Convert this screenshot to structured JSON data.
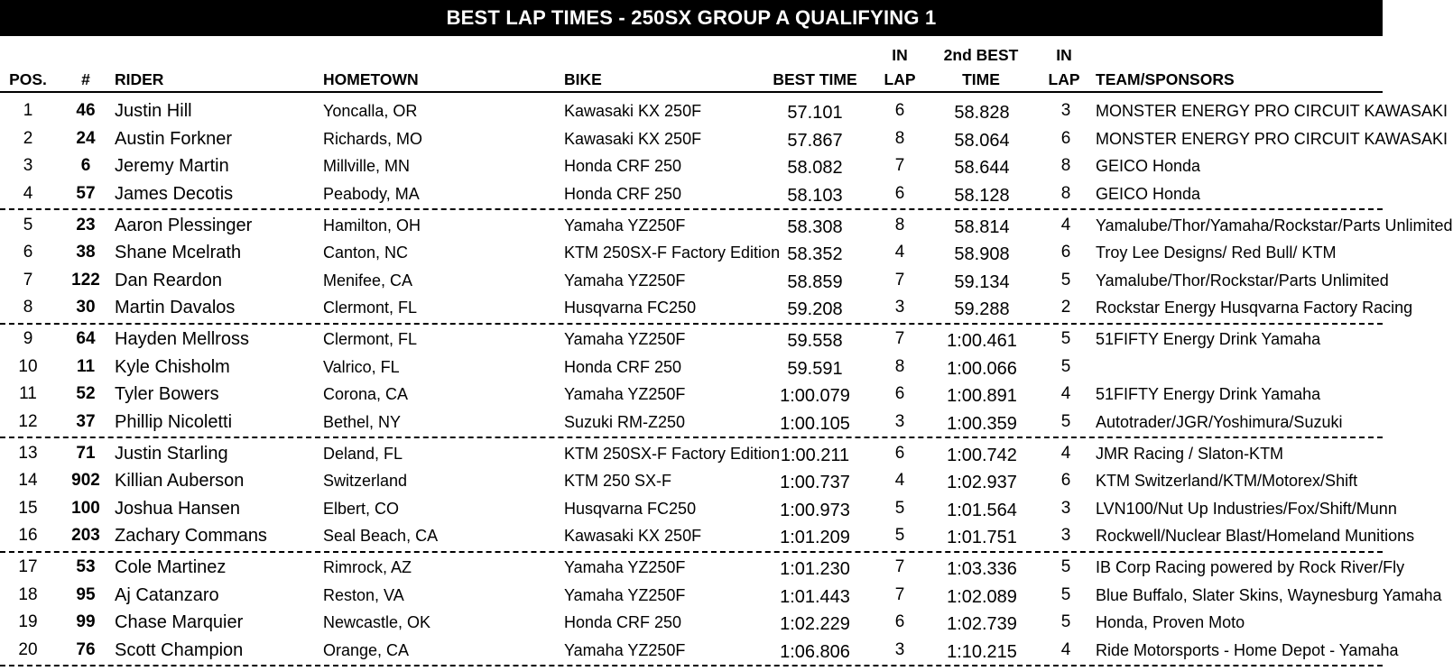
{
  "title": "BEST LAP TIMES - 250SX GROUP A QUALIFYING 1",
  "headers": {
    "pos": "POS.",
    "num": "#",
    "rider": "RIDER",
    "hometown": "HOMETOWN",
    "bike": "BIKE",
    "best_time": "BEST TIME",
    "in_lap_1_top": "IN",
    "in_lap_1_bottom": "LAP",
    "second_best_top": "2nd BEST",
    "second_best_bottom": "TIME",
    "in_lap_2_top": "IN",
    "in_lap_2_bottom": "LAP",
    "team": "TEAM/SPONSORS"
  },
  "rows": [
    {
      "pos": "1",
      "num": "46",
      "rider": "Justin Hill",
      "hometown": "Yoncalla, OR",
      "bike": "Kawasaki KX 250F",
      "best": "57.101",
      "lap1": "6",
      "best2": "58.828",
      "lap2": "3",
      "team": "MONSTER ENERGY PRO CIRCUIT KAWASAKI"
    },
    {
      "pos": "2",
      "num": "24",
      "rider": "Austin Forkner",
      "hometown": "Richards, MO",
      "bike": "Kawasaki KX 250F",
      "best": "57.867",
      "lap1": "8",
      "best2": "58.064",
      "lap2": "6",
      "team": "MONSTER ENERGY PRO CIRCUIT KAWASAKI"
    },
    {
      "pos": "3",
      "num": "6",
      "rider": "Jeremy Martin",
      "hometown": "Millville, MN",
      "bike": "Honda CRF 250",
      "best": "58.082",
      "lap1": "7",
      "best2": "58.644",
      "lap2": "8",
      "team": "GEICO Honda"
    },
    {
      "pos": "4",
      "num": "57",
      "rider": "James Decotis",
      "hometown": "Peabody, MA",
      "bike": "Honda CRF 250",
      "best": "58.103",
      "lap1": "6",
      "best2": "58.128",
      "lap2": "8",
      "team": "GEICO Honda"
    },
    {
      "pos": "5",
      "num": "23",
      "rider": "Aaron Plessinger",
      "hometown": "Hamilton, OH",
      "bike": "Yamaha YZ250F",
      "best": "58.308",
      "lap1": "8",
      "best2": "58.814",
      "lap2": "4",
      "team": "Yamalube/Thor/Yamaha/Rockstar/Parts Unlimited"
    },
    {
      "pos": "6",
      "num": "38",
      "rider": "Shane Mcelrath",
      "hometown": "Canton, NC",
      "bike": "KTM 250SX-F Factory Edition",
      "best": "58.352",
      "lap1": "4",
      "best2": "58.908",
      "lap2": "6",
      "team": "Troy Lee Designs/ Red Bull/ KTM"
    },
    {
      "pos": "7",
      "num": "122",
      "rider": "Dan Reardon",
      "hometown": "Menifee, CA",
      "bike": "Yamaha YZ250F",
      "best": "58.859",
      "lap1": "7",
      "best2": "59.134",
      "lap2": "5",
      "team": "Yamalube/Thor/Rockstar/Parts Unlimited"
    },
    {
      "pos": "8",
      "num": "30",
      "rider": "Martin Davalos",
      "hometown": "Clermont, FL",
      "bike": "Husqvarna FC250",
      "best": "59.208",
      "lap1": "3",
      "best2": "59.288",
      "lap2": "2",
      "team": "Rockstar Energy Husqvarna Factory Racing"
    },
    {
      "pos": "9",
      "num": "64",
      "rider": "Hayden Mellross",
      "hometown": "Clermont, FL",
      "bike": "Yamaha YZ250F",
      "best": "59.558",
      "lap1": "7",
      "best2": "1:00.461",
      "lap2": "5",
      "team": "51FIFTY Energy Drink Yamaha"
    },
    {
      "pos": "10",
      "num": "11",
      "rider": "Kyle Chisholm",
      "hometown": "Valrico, FL",
      "bike": "Honda CRF 250",
      "best": "59.591",
      "lap1": "8",
      "best2": "1:00.066",
      "lap2": "5",
      "team": ""
    },
    {
      "pos": "11",
      "num": "52",
      "rider": "Tyler Bowers",
      "hometown": "Corona, CA",
      "bike": "Yamaha YZ250F",
      "best": "1:00.079",
      "lap1": "6",
      "best2": "1:00.891",
      "lap2": "4",
      "team": "51FIFTY Energy Drink Yamaha"
    },
    {
      "pos": "12",
      "num": "37",
      "rider": "Phillip Nicoletti",
      "hometown": "Bethel, NY",
      "bike": "Suzuki RM-Z250",
      "best": "1:00.105",
      "lap1": "3",
      "best2": "1:00.359",
      "lap2": "5",
      "team": "Autotrader/JGR/Yoshimura/Suzuki"
    },
    {
      "pos": "13",
      "num": "71",
      "rider": "Justin Starling",
      "hometown": "Deland, FL",
      "bike": "KTM 250SX-F Factory Edition",
      "best": "1:00.211",
      "lap1": "6",
      "best2": "1:00.742",
      "lap2": "4",
      "team": "JMR Racing / Slaton-KTM"
    },
    {
      "pos": "14",
      "num": "902",
      "rider": "Killian Auberson",
      "hometown": "Switzerland",
      "bike": "KTM 250 SX-F",
      "best": "1:00.737",
      "lap1": "4",
      "best2": "1:02.937",
      "lap2": "6",
      "team": "KTM Switzerland/KTM/Motorex/Shift"
    },
    {
      "pos": "15",
      "num": "100",
      "rider": "Joshua Hansen",
      "hometown": "Elbert, CO",
      "bike": "Husqvarna FC250",
      "best": "1:00.973",
      "lap1": "5",
      "best2": "1:01.564",
      "lap2": "3",
      "team": "LVN100/Nut Up Industries/Fox/Shift/Munn"
    },
    {
      "pos": "16",
      "num": "203",
      "rider": "Zachary Commans",
      "hometown": "Seal Beach, CA",
      "bike": "Kawasaki KX 250F",
      "best": "1:01.209",
      "lap1": "5",
      "best2": "1:01.751",
      "lap2": "3",
      "team": "Rockwell/Nuclear Blast/Homeland Munitions"
    },
    {
      "pos": "17",
      "num": "53",
      "rider": "Cole Martinez",
      "hometown": "Rimrock, AZ",
      "bike": "Yamaha YZ250F",
      "best": "1:01.230",
      "lap1": "7",
      "best2": "1:03.336",
      "lap2": "5",
      "team": "IB Corp Racing powered by Rock River/Fly"
    },
    {
      "pos": "18",
      "num": "95",
      "rider": "Aj Catanzaro",
      "hometown": "Reston, VA",
      "bike": "Yamaha YZ250F",
      "best": "1:01.443",
      "lap1": "7",
      "best2": "1:02.089",
      "lap2": "5",
      "team": "Blue Buffalo, Slater Skins, Waynesburg Yamaha"
    },
    {
      "pos": "19",
      "num": "99",
      "rider": "Chase Marquier",
      "hometown": "Newcastle, OK",
      "bike": "Honda CRF 250",
      "best": "1:02.229",
      "lap1": "6",
      "best2": "1:02.739",
      "lap2": "5",
      "team": "Honda, Proven Moto"
    },
    {
      "pos": "20",
      "num": "76",
      "rider": "Scott Champion",
      "hometown": "Orange, CA",
      "bike": "Yamaha YZ250F",
      "best": "1:06.806",
      "lap1": "3",
      "best2": "1:10.215",
      "lap2": "4",
      "team": "Ride Motorsports - Home Depot - Yamaha"
    }
  ]
}
